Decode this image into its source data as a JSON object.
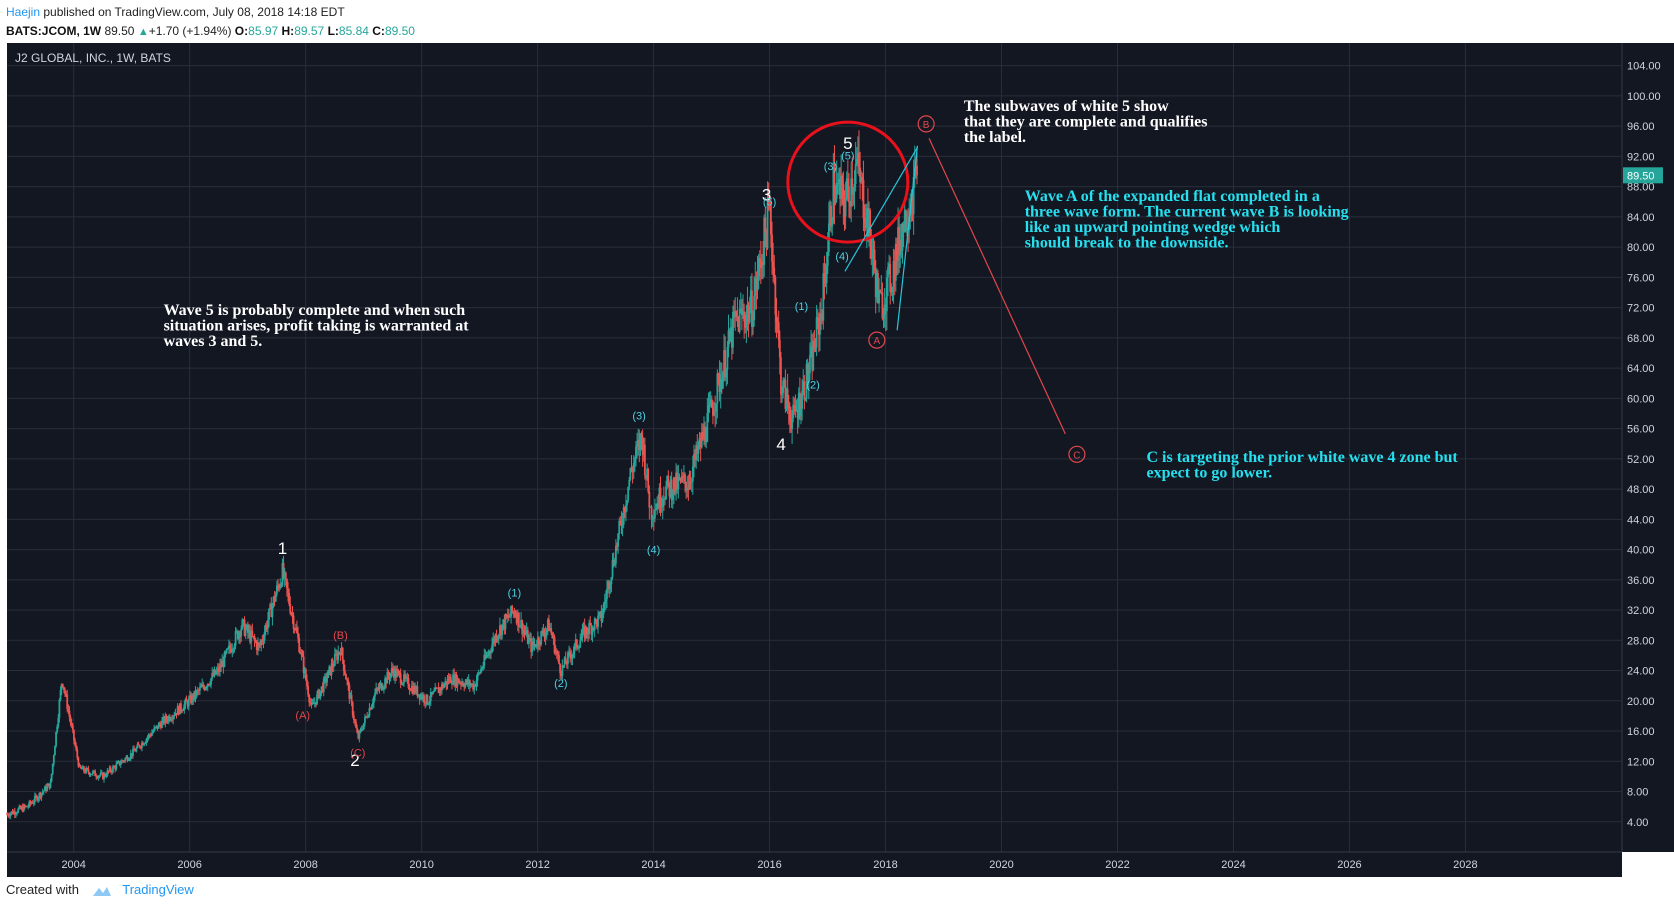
{
  "header": {
    "author": "Haejin",
    "published_text": "published on TradingView.com, July 08, 2018 14:18 EDT",
    "symbol": "BATS:JCOM, 1W",
    "price": "89.50",
    "change": "+1.70 (+1.94%)",
    "o_label": "O:",
    "o_value": "85.97",
    "h_label": "H:",
    "h_value": "89.57",
    "l_label": "L:",
    "l_value": "85.84",
    "c_label": "C:",
    "c_value": "89.50"
  },
  "footer": {
    "created_with": "Created with",
    "brand": "TradingView"
  },
  "chart_data": {
    "type": "candlestick",
    "title": "J2 GLOBAL, INC., 1W, BATS",
    "last_price": "89.50",
    "x_ticks": [
      "2004",
      "2006",
      "2008",
      "2010",
      "2012",
      "2014",
      "2016",
      "2018",
      "2020",
      "2022",
      "2024",
      "2026",
      "2028"
    ],
    "y_ticks": [
      "4.00",
      "8.00",
      "12.00",
      "16.00",
      "20.00",
      "24.00",
      "28.00",
      "32.00",
      "36.00",
      "40.00",
      "44.00",
      "48.00",
      "52.00",
      "56.00",
      "60.00",
      "64.00",
      "68.00",
      "72.00",
      "76.00",
      "80.00",
      "84.00",
      "88.00",
      "92.00",
      "96.00",
      "100.00",
      "104.00"
    ],
    "ylim": [
      0,
      107
    ],
    "xlim": [
      2002.85,
      2030.7
    ],
    "price_path": [
      [
        2002.85,
        5
      ],
      [
        2003.2,
        6
      ],
      [
        2003.6,
        9
      ],
      [
        2003.8,
        23
      ],
      [
        2004.1,
        11
      ],
      [
        2004.5,
        10
      ],
      [
        2005.0,
        13
      ],
      [
        2005.5,
        17
      ],
      [
        2006.0,
        20
      ],
      [
        2006.5,
        24
      ],
      [
        2006.9,
        30
      ],
      [
        2007.2,
        27
      ],
      [
        2007.6,
        37
      ],
      [
        2007.9,
        27
      ],
      [
        2008.1,
        19
      ],
      [
        2008.3,
        22
      ],
      [
        2008.6,
        27
      ],
      [
        2008.9,
        15
      ],
      [
        2009.2,
        21
      ],
      [
        2009.5,
        24
      ],
      [
        2009.8,
        22
      ],
      [
        2010.1,
        20
      ],
      [
        2010.5,
        23
      ],
      [
        2010.9,
        22
      ],
      [
        2011.3,
        29
      ],
      [
        2011.6,
        32
      ],
      [
        2011.9,
        27
      ],
      [
        2012.2,
        30
      ],
      [
        2012.4,
        24
      ],
      [
        2012.8,
        29
      ],
      [
        2013.1,
        31
      ],
      [
        2013.4,
        42
      ],
      [
        2013.6,
        50
      ],
      [
        2013.8,
        55
      ],
      [
        2013.95,
        45
      ],
      [
        2014.2,
        48
      ],
      [
        2014.6,
        49
      ],
      [
        2014.9,
        56
      ],
      [
        2015.2,
        64
      ],
      [
        2015.4,
        70
      ],
      [
        2015.7,
        72
      ],
      [
        2016.0,
        85
      ],
      [
        2016.2,
        62
      ],
      [
        2016.4,
        57
      ],
      [
        2016.7,
        64
      ],
      [
        2016.9,
        72
      ],
      [
        2017.1,
        88
      ],
      [
        2017.3,
        86
      ],
      [
        2017.5,
        91
      ],
      [
        2017.7,
        83
      ],
      [
        2017.9,
        72
      ],
      [
        2018.1,
        76
      ],
      [
        2018.3,
        83
      ],
      [
        2018.55,
        89.5
      ]
    ],
    "annotations": [
      {
        "text": "1",
        "x": 2007.6,
        "y": 39.4,
        "color": "#ffffff",
        "size": 17
      },
      {
        "text": "2",
        "x": 2008.85,
        "y": 11.4,
        "color": "#ffffff",
        "size": 17
      },
      {
        "text": "3",
        "x": 2015.95,
        "y": 86.2,
        "color": "#ffffff",
        "size": 17
      },
      {
        "text": "4",
        "x": 2016.2,
        "y": 53.2,
        "color": "#ffffff",
        "size": 17
      },
      {
        "text": "5",
        "x": 2017.35,
        "y": 93.0,
        "color": "#ffffff",
        "size": 17
      },
      {
        "text": "(A)",
        "x": 2007.95,
        "y": 17.6,
        "color": "#e0474c",
        "size": 11
      },
      {
        "text": "(B)",
        "x": 2008.6,
        "y": 28.2,
        "color": "#e0474c",
        "size": 11
      },
      {
        "text": "(C)",
        "x": 2008.9,
        "y": 12.6,
        "color": "#e0474c",
        "size": 11
      },
      {
        "text": "(1)",
        "x": 2011.6,
        "y": 33.8,
        "color": "#4dd0e1",
        "size": 11
      },
      {
        "text": "(2)",
        "x": 2012.4,
        "y": 21.8,
        "color": "#4dd0e1",
        "size": 11
      },
      {
        "text": "(3)",
        "x": 2013.75,
        "y": 57.2,
        "color": "#4dd0e1",
        "size": 11
      },
      {
        "text": "(4)",
        "x": 2014.0,
        "y": 39.5,
        "color": "#4dd0e1",
        "size": 11
      },
      {
        "text": "(5)",
        "x": 2016.0,
        "y": 85.5,
        "color": "#4dd0e1",
        "size": 11
      },
      {
        "text": "(1)",
        "x": 2016.55,
        "y": 71.7,
        "color": "#4dd0e1",
        "size": 11
      },
      {
        "text": "(2)",
        "x": 2016.75,
        "y": 61.3,
        "color": "#4dd0e1",
        "size": 11
      },
      {
        "text": "(3)",
        "x": 2017.05,
        "y": 90.2,
        "color": "#4dd0e1",
        "size": 11
      },
      {
        "text": "(4)",
        "x": 2017.25,
        "y": 78.3,
        "color": "#4dd0e1",
        "size": 11
      },
      {
        "text": "(5)",
        "x": 2017.35,
        "y": 91.6,
        "color": "#4dd0e1",
        "size": 11
      }
    ],
    "circle_labels": [
      {
        "text": "A",
        "x": 2017.85,
        "y": 67.7,
        "color": "#e0474c"
      },
      {
        "text": "B",
        "x": 2018.7,
        "y": 96.3,
        "color": "#e0474c"
      },
      {
        "text": "C",
        "x": 2021.3,
        "y": 52.6,
        "color": "#e0474c"
      }
    ],
    "notes": [
      {
        "lines": [
          "Wave 5 is probably complete and when such",
          "situation arises, profit taking is warranted at",
          "waves 3 and 5."
        ],
        "x": 2005.55,
        "y": 71.0,
        "color": "#ffffff"
      },
      {
        "lines": [
          "The subwaves of white 5 show",
          "that they are complete and qualifies",
          "the label."
        ],
        "x": 2019.35,
        "y": 98.0,
        "color": "#ffffff"
      },
      {
        "lines": [
          "Wave A of the expanded flat completed in a",
          "three wave form. The current wave B is looking",
          "like an upward pointing wedge which",
          "should break to the downside."
        ],
        "x": 2020.4,
        "y": 86.1,
        "color": "#26e0ef"
      },
      {
        "lines": [
          "C is targeting the prior white wave 4 zone but",
          "expect to go lower."
        ],
        "x": 2022.5,
        "y": 51.6,
        "color": "#26e0ef"
      }
    ],
    "highlight_circle": {
      "x": 2017.35,
      "y": 88.6,
      "color": "#e8111c"
    },
    "wedge_lines": [
      {
        "x1": 2017.3,
        "y1": 76.8,
        "x2": 2018.55,
        "y2": 93.2,
        "color": "#26c6da"
      },
      {
        "x1": 2018.2,
        "y1": 69.0,
        "x2": 2018.55,
        "y2": 93.4,
        "color": "#26c6da"
      }
    ],
    "projection_line": {
      "x1": 2018.75,
      "y1": 94.4,
      "x2": 2021.1,
      "y2": 55.3,
      "color": "#e0474c"
    },
    "colors": {
      "background": "#131722",
      "grid": "#2a2e39",
      "up": "#26a69a",
      "down": "#ef5350",
      "axis_text": "#d1d4dc",
      "price_badge": "#26a69a"
    }
  }
}
